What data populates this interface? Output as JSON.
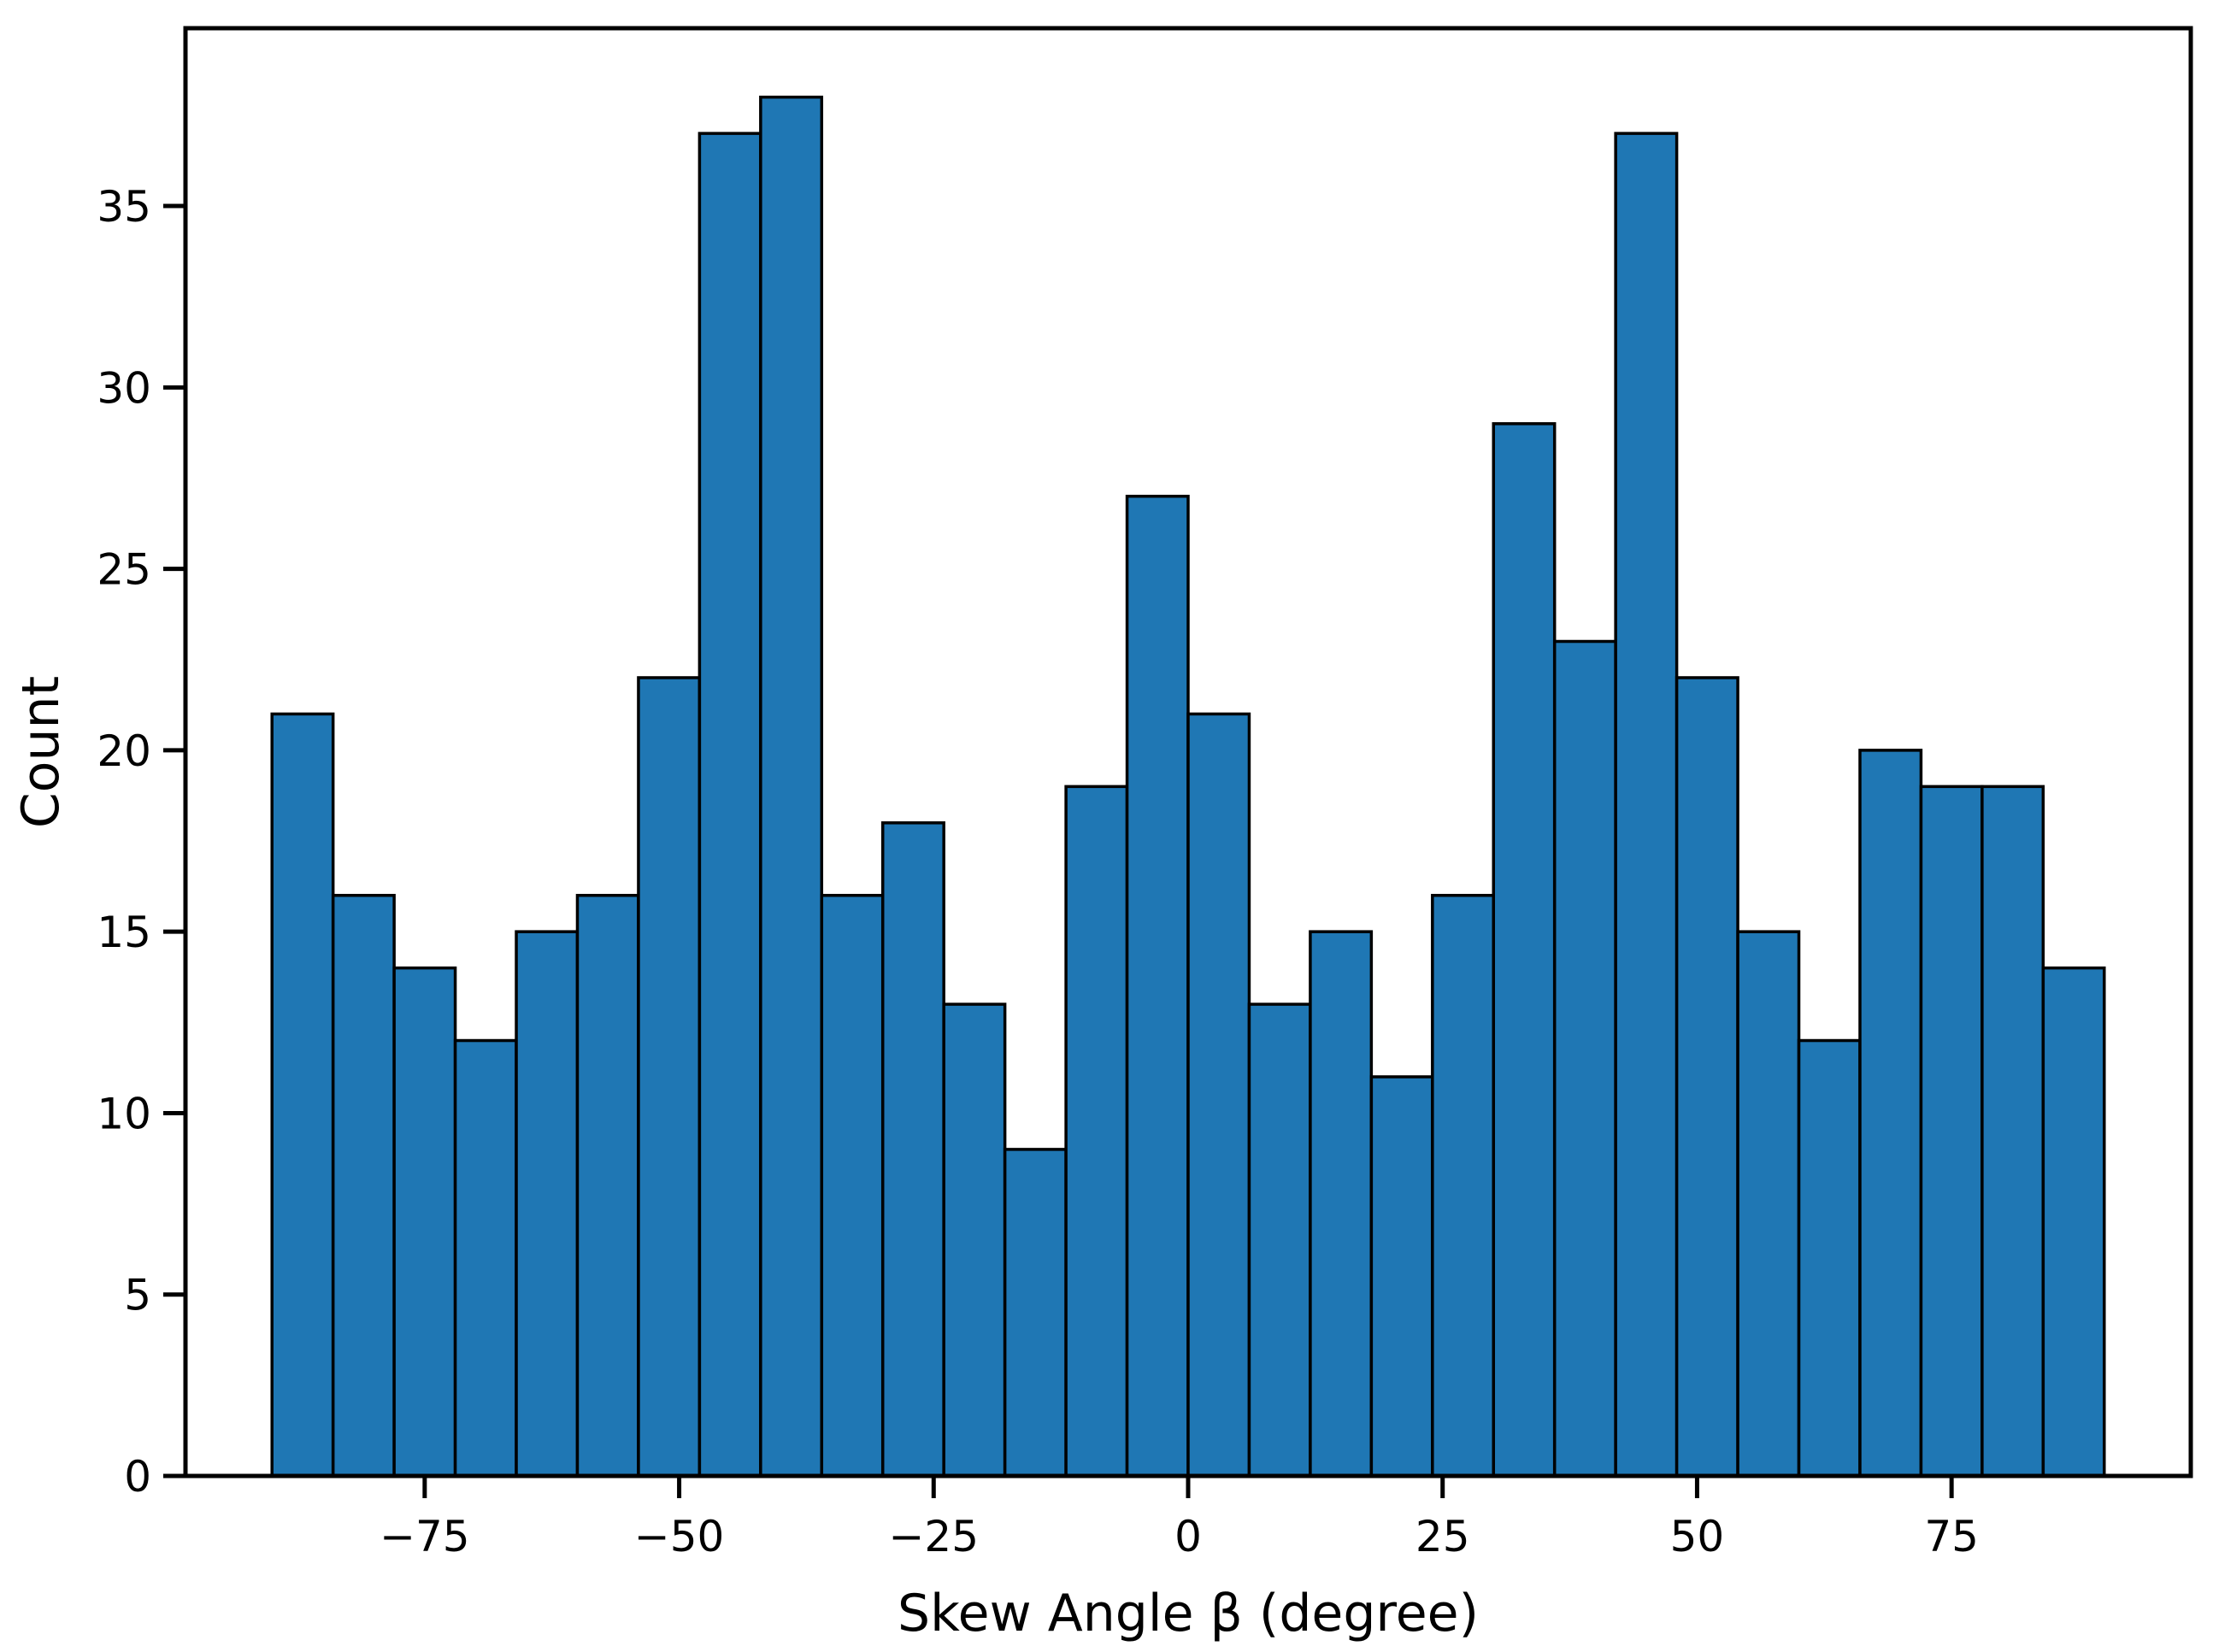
{
  "figure": {
    "background": "#ffffff"
  },
  "chart_data": {
    "type": "bar",
    "subtype": "histogram",
    "title": "",
    "xlabel": "Skew Angle β (degree)",
    "ylabel": "Count",
    "bin_edges": [
      -90,
      -84,
      -78,
      -72,
      -66,
      -60,
      -54,
      -48,
      -42,
      -36,
      -30,
      -24,
      -18,
      -12,
      -6,
      0,
      6,
      12,
      18,
      24,
      30,
      36,
      42,
      48,
      54,
      60,
      66,
      72,
      78,
      84,
      90
    ],
    "counts": [
      21,
      16,
      14,
      12,
      15,
      16,
      22,
      37,
      38,
      16,
      18,
      13,
      9,
      19,
      27,
      21,
      13,
      15,
      11,
      16,
      29,
      23,
      37,
      22,
      15,
      12,
      20,
      19,
      19,
      14
    ],
    "xticks": [
      {
        "value": -75,
        "label": "−75"
      },
      {
        "value": -50,
        "label": "−50"
      },
      {
        "value": -25,
        "label": "−25"
      },
      {
        "value": 0,
        "label": "0"
      },
      {
        "value": 25,
        "label": "25"
      },
      {
        "value": 50,
        "label": "50"
      },
      {
        "value": 75,
        "label": "75"
      }
    ],
    "yticks": [
      {
        "value": 0,
        "label": "0"
      },
      {
        "value": 5,
        "label": "5"
      },
      {
        "value": 10,
        "label": "10"
      },
      {
        "value": 15,
        "label": "15"
      },
      {
        "value": 20,
        "label": "20"
      },
      {
        "value": 25,
        "label": "25"
      },
      {
        "value": 30,
        "label": "30"
      },
      {
        "value": 35,
        "label": "35"
      }
    ],
    "xlim": [
      -98.5,
      98.5
    ],
    "ylim": [
      0,
      39.9
    ],
    "grid": false,
    "legend": null,
    "bar_fill": "#1f77b4",
    "bar_edge": "#000000",
    "axis_color": "#000000"
  }
}
